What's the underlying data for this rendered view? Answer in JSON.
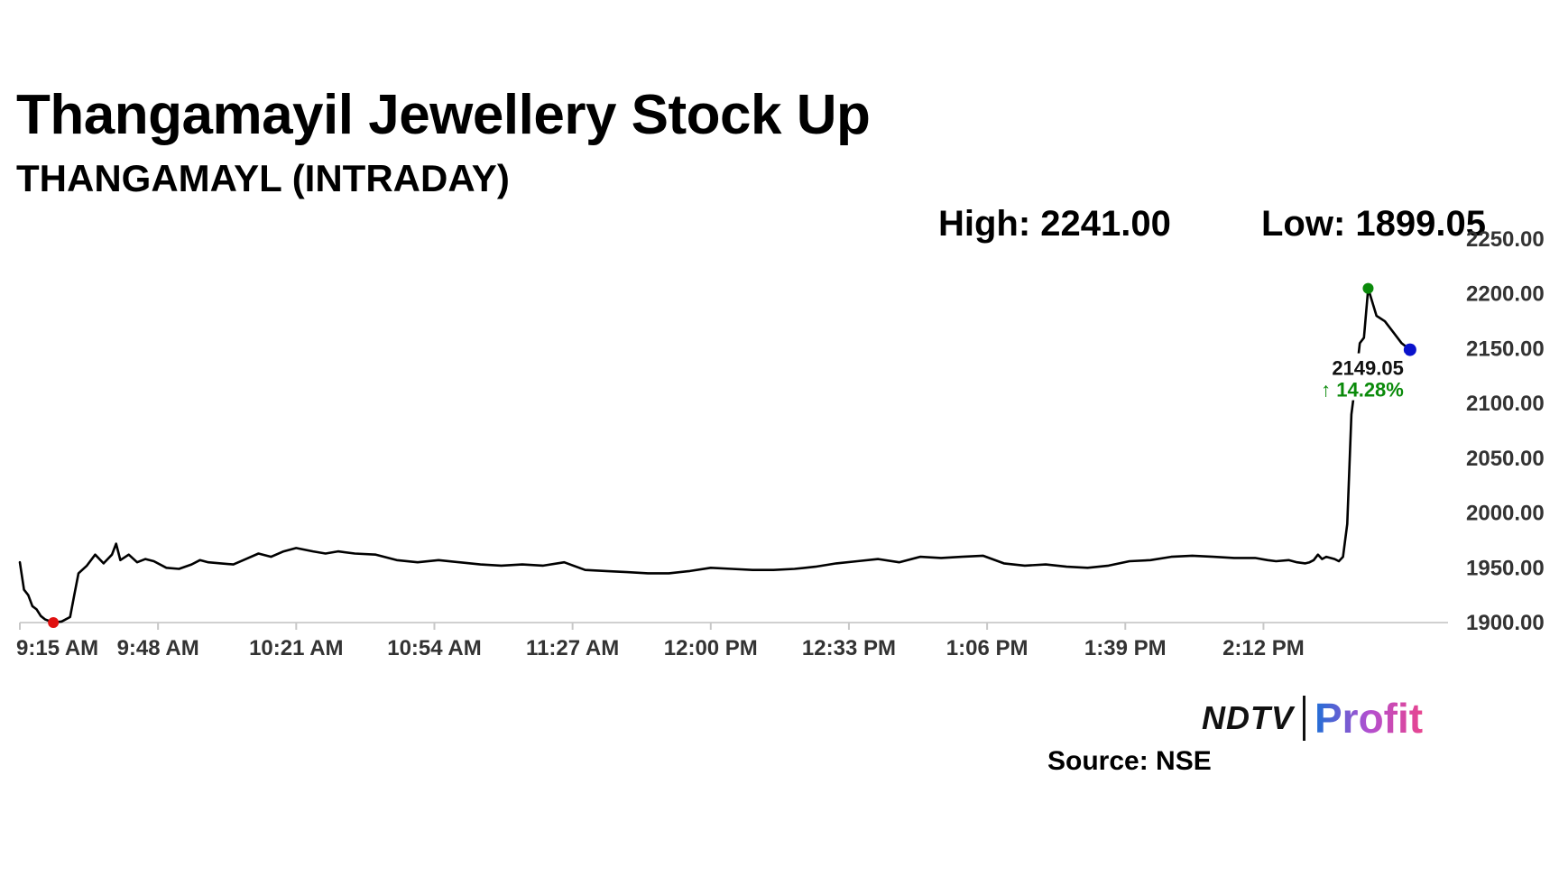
{
  "header": {
    "title": "Thangamayil Jewellery Stock Up",
    "subtitle": "THANGAMAYL (INTRADAY)"
  },
  "stats": {
    "high": "High: 2241.00",
    "low": "Low: 1899.05"
  },
  "branding": {
    "logo_left": "NDTV",
    "logo_right": "Profit",
    "logo_dot_color": "#e31e24",
    "profit_gradient": [
      "#1f6fd6",
      "#b24fd0",
      "#e8458f"
    ],
    "source": "Source: NSE"
  },
  "chart_data": {
    "type": "line",
    "title": "",
    "xlabel": "",
    "ylabel": "",
    "ylim": [
      1900,
      2250
    ],
    "xlim": [
      0,
      340
    ],
    "y_ticks": [
      1900,
      1950,
      2000,
      2050,
      2100,
      2150,
      2200,
      2250
    ],
    "y_tick_labels": [
      "1900.00",
      "1950.00",
      "2000.00",
      "2050.00",
      "2100.00",
      "2150.00",
      "2200.00",
      "2250.00"
    ],
    "x_ticks": [
      0,
      33,
      66,
      99,
      132,
      165,
      198,
      231,
      264,
      297
    ],
    "x_tick_labels": [
      "9:15 AM",
      "9:48 AM",
      "10:21 AM",
      "10:54 AM",
      "11:27 AM",
      "12:00 PM",
      "12:33 PM",
      "1:06 PM",
      "1:39 PM",
      "2:12 PM"
    ],
    "x_unit": "minutes after 9:15 AM",
    "grid": false,
    "line_color": "#000000",
    "series": [
      {
        "x": [
          0,
          1,
          2,
          3,
          4,
          5,
          6,
          8,
          10,
          12,
          13,
          14,
          16,
          18,
          20,
          22,
          23,
          24,
          26,
          28,
          30,
          32,
          35,
          38,
          41,
          43,
          45,
          48,
          51,
          54,
          57,
          60,
          63,
          66,
          70,
          73,
          76,
          80,
          85,
          90,
          95,
          100,
          105,
          110,
          115,
          120,
          125,
          130,
          135,
          140,
          145,
          150,
          155,
          160,
          165,
          170,
          175,
          180,
          185,
          190,
          195,
          200,
          205,
          210,
          215,
          220,
          225,
          230,
          235,
          240,
          245,
          250,
          255,
          260,
          265,
          270,
          275,
          280,
          285,
          290,
          295,
          298,
          300,
          303,
          305,
          307,
          308,
          309,
          310,
          311,
          312,
          314,
          315,
          316,
          317,
          318,
          319,
          320,
          321,
          322,
          324,
          326,
          328,
          330,
          332
        ],
        "values": [
          1955,
          1930,
          1925,
          1915,
          1912,
          1906,
          1903,
          1900,
          1901,
          1905,
          1925,
          1945,
          1952,
          1962,
          1954,
          1962,
          1972,
          1957,
          1962,
          1955,
          1958,
          1956,
          1950,
          1949,
          1953,
          1957,
          1955,
          1954,
          1953,
          1958,
          1963,
          1960,
          1965,
          1968,
          1965,
          1963,
          1965,
          1963,
          1962,
          1957,
          1955,
          1957,
          1955,
          1953,
          1952,
          1953,
          1952,
          1955,
          1948,
          1947,
          1946,
          1945,
          1945,
          1947,
          1950,
          1949,
          1948,
          1948,
          1949,
          1951,
          1954,
          1956,
          1958,
          1955,
          1960,
          1959,
          1960,
          1961,
          1954,
          1952,
          1953,
          1951,
          1950,
          1952,
          1956,
          1957,
          1960,
          1961,
          1960,
          1959,
          1959,
          1957,
          1956,
          1957,
          1955,
          1954,
          1955,
          1957,
          1962,
          1958,
          1960,
          1958,
          1956,
          1960,
          1990,
          2090,
          2120,
          2155,
          2160,
          2205,
          2180,
          2175,
          2165,
          2155,
          2149.05
        ]
      }
    ],
    "markers": {
      "low_color": "#e01010",
      "high_color": "#0a8a0a",
      "last_color": "#0a12cc"
    },
    "last_price": "2149.05",
    "change": "↑ 14.28%",
    "change_color": "#0a8a0a"
  }
}
